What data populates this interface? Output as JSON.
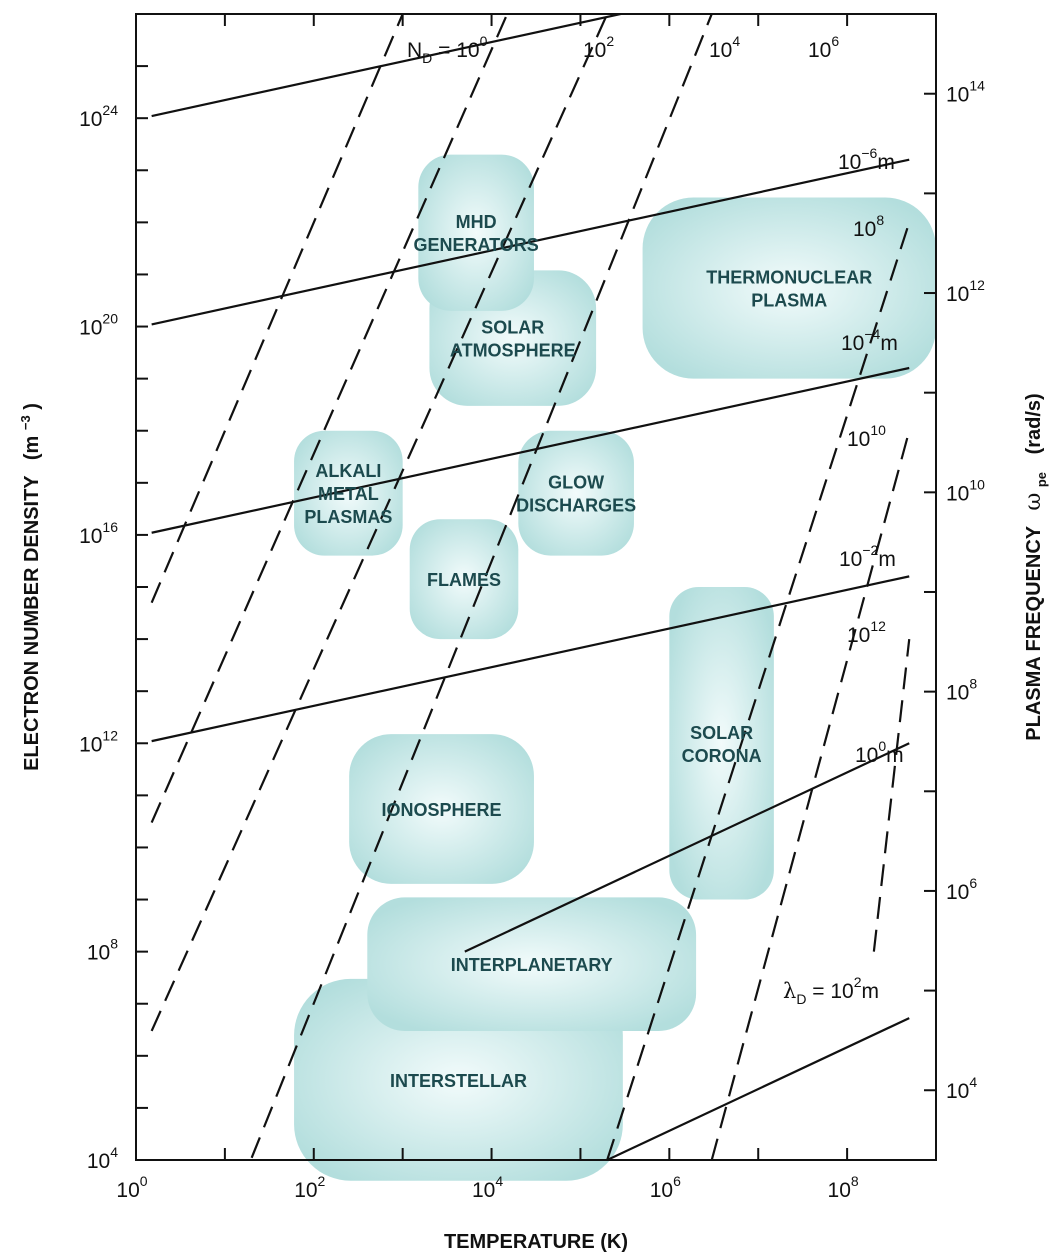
{
  "chart_data": {
    "type": "region-diagram",
    "x_axis": {
      "label": "TEMPERATURE (K)",
      "scale": "log",
      "range": [
        1,
        1000000000.0
      ],
      "tick_labels": [
        {
          "value": 1,
          "base": "10",
          "exp": "0"
        },
        {
          "value": 100,
          "base": "10",
          "exp": "2"
        },
        {
          "value": 10000,
          "base": "10",
          "exp": "4"
        },
        {
          "value": 1000000,
          "base": "10",
          "exp": "6"
        },
        {
          "value": 100000000,
          "base": "10",
          "exp": "8"
        }
      ]
    },
    "y_axis_left": {
      "label": "ELECTRON NUMBER DENSITY",
      "unit_base": "(m",
      "unit_exp": "−3",
      "unit_close": ")",
      "scale": "log",
      "range": [
        10000.0,
        1e+26
      ],
      "tick_labels": [
        {
          "value": 10000.0,
          "base": "10",
          "exp": "4"
        },
        {
          "value": 100000000.0,
          "base": "10",
          "exp": "8"
        },
        {
          "value": 1000000000000.0,
          "base": "10",
          "exp": "12"
        },
        {
          "value": 1e+16,
          "base": "10",
          "exp": "16"
        },
        {
          "value": 1e+20,
          "base": "10",
          "exp": "20"
        },
        {
          "value": 1e+24,
          "base": "10",
          "exp": "24"
        }
      ]
    },
    "y_axis_right": {
      "label": "PLASMA FREQUENCY",
      "symbol": "ω",
      "symbol_sub": "pe",
      "unit": "(rad/s)",
      "scale": "log",
      "tick_labels": [
        {
          "value": 10000.0,
          "base": "10",
          "exp": "4"
        },
        {
          "value": 1000000.0,
          "base": "10",
          "exp": "6"
        },
        {
          "value": 100000000.0,
          "base": "10",
          "exp": "8"
        },
        {
          "value": 10000000000.0,
          "base": "10",
          "exp": "10"
        },
        {
          "value": 1000000000000.0,
          "base": "10",
          "exp": "12"
        },
        {
          "value": 100000000000000.0,
          "base": "10",
          "exp": "14"
        }
      ]
    },
    "debye_length_lines": {
      "style": "solid",
      "series": [
        {
          "lambda_exp": 2,
          "label_pre": "λ",
          "label_sub": "D",
          "label_mid": " = 10",
          "label_exp": "2",
          "label_post": "m",
          "points": [
            [
              200000,
              10000.0
            ],
            [
              500000000,
              5300000.0
            ]
          ]
        },
        {
          "lambda_exp": 0,
          "label_base": "10",
          "label_exp": "0",
          "label_post": "m",
          "points": [
            [
              5000,
              100000000.0
            ],
            [
              500000000,
              1000000000000.0
            ]
          ]
        },
        {
          "lambda_exp": -2,
          "label_base": "10",
          "label_exp": "−2",
          "label_post": "m",
          "points": [
            [
              1.5,
              1100000000000.0
            ],
            [
              500000000,
              1600000000000000.0
            ]
          ]
        },
        {
          "lambda_exp": -4,
          "label_base": "10",
          "label_exp": "−4",
          "label_post": "m",
          "points": [
            [
              1.5,
              1.1e+16
            ],
            [
              500000000,
              1.6e+19
            ]
          ]
        },
        {
          "lambda_exp": -6,
          "label_base": "10",
          "label_exp": "−6",
          "label_post": "m",
          "points": [
            [
              1.5,
              1.1e+20
            ],
            [
              500000000,
              1.6e+23
            ]
          ]
        },
        {
          "lambda_exp": -8,
          "points": [
            [
              1.5,
              1.1e+24
            ],
            [
              3000000,
              2.4e+26
            ]
          ]
        }
      ]
    },
    "debye_number_lines": {
      "style": "dashed",
      "series": [
        {
          "label_pre": "N",
          "label_sub": "D",
          "label_mid": " = 10",
          "label_exp": "0",
          "points": [
            [
              1.5,
              500000000000000.0
            ],
            [
              1000,
              1e+26
            ]
          ]
        },
        {
          "label_base": "10",
          "label_exp": "2",
          "points": [
            [
              1.5,
              30000000000.0
            ],
            [
              15000,
              1e+26
            ]
          ]
        },
        {
          "label_base": "10",
          "label_exp": "4",
          "points": [
            [
              1.5,
              3000000.0
            ],
            [
              200000,
              1e+26
            ]
          ]
        },
        {
          "label_base": "10",
          "label_exp": "6",
          "points": [
            [
              20,
              11000.0
            ],
            [
              3000000,
              1e+26
            ]
          ]
        },
        {
          "label_base": "10",
          "label_exp": "8",
          "points": [
            [
              200000,
              10000.0
            ],
            [
              500000000,
              1e+22
            ]
          ]
        },
        {
          "label_base": "10",
          "label_exp": "10",
          "points": [
            [
              3000000,
              10000.0
            ],
            [
              500000000,
              1e+18
            ]
          ]
        },
        {
          "label_base": "10",
          "label_exp": "12",
          "points": [
            [
              200000000,
              100000000.0
            ],
            [
              500000000,
              100000000000000.0
            ]
          ]
        }
      ]
    },
    "regions": [
      {
        "name": "INTERSTELLAR",
        "lines": [
          "INTERSTELLAR"
        ],
        "x": [
          60,
          300000.0
        ],
        "y": [
          4000.0,
          30000000.0
        ]
      },
      {
        "name": "INTERPLANETARY",
        "lines": [
          "INTERPLANETARY"
        ],
        "x": [
          400,
          2000000.0
        ],
        "y": [
          3000000.0,
          1100000000.0
        ]
      },
      {
        "name": "IONOSPHERE",
        "lines": [
          "IONOSPHERE"
        ],
        "x": [
          250,
          30000.0
        ],
        "y": [
          2000000000.0,
          1500000000000.0
        ]
      },
      {
        "name": "SOLAR CORONA",
        "lines": [
          "SOLAR",
          "CORONA"
        ],
        "x": [
          1000000.0,
          15000000.0
        ],
        "y": [
          1000000000.0,
          1000000000000000.0
        ]
      },
      {
        "name": "FLAMES",
        "lines": [
          "FLAMES"
        ],
        "x": [
          1200,
          20000.0
        ],
        "y": [
          100000000000000.0,
          2e+16
        ]
      },
      {
        "name": "GLOW DISCHARGES",
        "lines": [
          "GLOW",
          "DISCHARGES"
        ],
        "x": [
          20000.0,
          400000.0
        ],
        "y": [
          4000000000000000.0,
          1e+18
        ]
      },
      {
        "name": "ALKALI METAL PLASMAS",
        "lines": [
          "ALKALI",
          "METAL",
          "PLASMAS"
        ],
        "x": [
          60,
          1000
        ],
        "y": [
          4000000000000000.0,
          1e+18
        ]
      },
      {
        "name": "SOLAR ATMOSPHERE",
        "lines": [
          "SOLAR",
          "ATMOSPHERE"
        ],
        "x": [
          2000,
          150000.0
        ],
        "y": [
          3e+18,
          1.2e+21
        ]
      },
      {
        "name": "MHD GENERATORS",
        "lines": [
          "MHD",
          "GENERATORS"
        ],
        "x": [
          1500,
          30000.0
        ],
        "y": [
          2e+20,
          2e+23
        ]
      },
      {
        "name": "THERMONUCLEAR PLASMA",
        "lines": [
          "THERMONUCLEAR",
          "PLASMA"
        ],
        "x": [
          500000.0,
          1000000000.0
        ],
        "y": [
          1e+19,
          3e+22
        ]
      }
    ],
    "colors": {
      "region_center": "#f2fbfb",
      "region_edge": "#b3dedd",
      "region_text": "#1c4a4e",
      "line": "#111111"
    }
  }
}
